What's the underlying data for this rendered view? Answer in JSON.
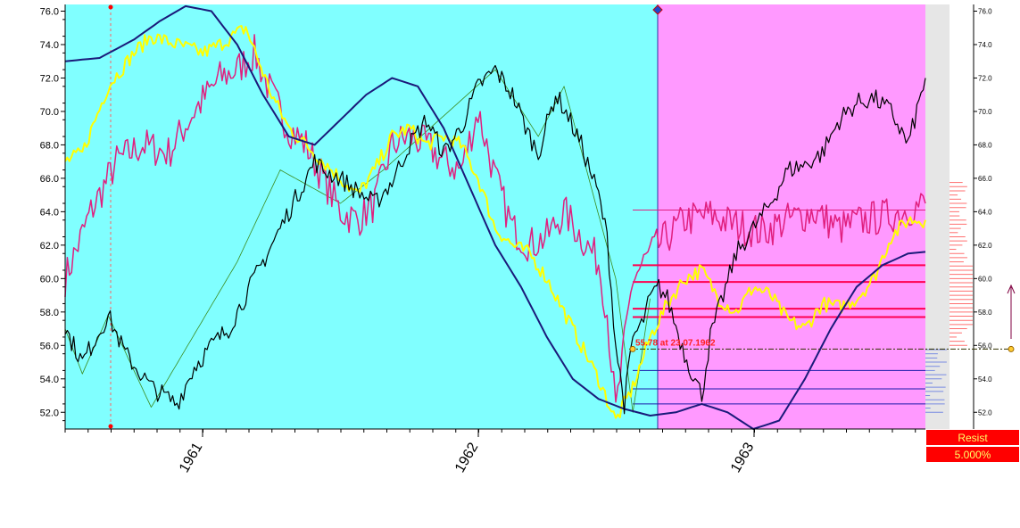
{
  "chart_data": {
    "type": "line",
    "title": "",
    "xlabel": "",
    "ylabel": "",
    "x_ticks": [
      "1961",
      "1962",
      "1963"
    ],
    "ylim": [
      51.0,
      76.4
    ],
    "y_ticks": [
      "52.0",
      "54.0",
      "56.0",
      "58.0",
      "60.0",
      "62.0",
      "64.0",
      "66.0",
      "68.0",
      "70.0",
      "72.0",
      "74.0",
      "76.0"
    ],
    "colors": {
      "history_bg": "#80ffff",
      "forecast_bg": "#ff99ff",
      "price": "#000000",
      "magenta": "#e0207f",
      "yellow": "#ffff00",
      "navy": "#1a1a7a",
      "zigzag": "#3c8c1e",
      "resist": "#ff0000"
    },
    "series": [
      {
        "key": "price",
        "x": [
          0.0,
          0.02,
          0.05,
          0.07,
          0.1,
          0.13,
          0.15,
          0.17,
          0.19,
          0.21,
          0.23,
          0.25,
          0.27,
          0.29,
          0.3,
          0.32,
          0.34,
          0.36,
          0.38,
          0.4,
          0.42,
          0.44,
          0.46,
          0.48,
          0.5,
          0.52,
          0.54,
          0.55,
          0.57,
          0.58,
          0.6,
          0.62,
          0.63,
          0.64,
          0.65,
          0.66,
          0.67,
          0.68,
          0.69,
          0.7,
          0.72,
          0.74,
          0.75,
          0.77,
          0.78,
          0.8,
          0.82,
          0.84,
          0.86,
          0.88,
          0.9,
          0.92,
          0.94,
          0.96,
          0.98,
          1.0
        ],
        "y": [
          57.0,
          55.0,
          57.8,
          55.5,
          53.5,
          52.5,
          54.7,
          56.0,
          57.0,
          59.0,
          61.0,
          63.0,
          65.0,
          67.0,
          66.5,
          66.0,
          65.2,
          64.5,
          65.8,
          68.0,
          69.5,
          67.5,
          69.0,
          71.5,
          72.5,
          71.0,
          68.5,
          67.5,
          71.0,
          70.2,
          68.0,
          65.0,
          62.5,
          56.0,
          52.5,
          56.5,
          57.2,
          58.8,
          59.5,
          58.8,
          55.5,
          53.0,
          56.5,
          59.8,
          61.5,
          63.0,
          64.5,
          66.5,
          66.8,
          67.5,
          69.5,
          70.5,
          70.8,
          70.0,
          68.0,
          72.0
        ]
      },
      {
        "key": "magenta",
        "x": [
          0.0,
          0.03,
          0.06,
          0.09,
          0.12,
          0.15,
          0.18,
          0.2,
          0.22,
          0.24,
          0.26,
          0.28,
          0.3,
          0.32,
          0.34,
          0.36,
          0.38,
          0.4,
          0.42,
          0.44,
          0.46,
          0.48,
          0.5,
          0.52,
          0.54,
          0.56,
          0.58,
          0.6,
          0.62,
          0.63,
          0.64,
          0.65,
          0.66,
          0.68,
          0.7,
          0.72,
          0.75,
          0.78,
          0.81,
          0.84,
          0.87,
          0.9,
          0.93,
          0.96,
          1.0
        ],
        "y": [
          60.0,
          64.0,
          67.0,
          68.0,
          67.5,
          70.0,
          72.0,
          72.5,
          73.5,
          71.0,
          69.0,
          68.0,
          66.0,
          64.0,
          63.5,
          64.5,
          68.0,
          68.5,
          68.0,
          67.0,
          66.5,
          70.0,
          66.0,
          63.0,
          62.0,
          62.5,
          64.0,
          62.5,
          61.0,
          58.0,
          52.0,
          56.0,
          60.0,
          61.5,
          62.5,
          63.5,
          63.8,
          63.2,
          62.8,
          63.5,
          64.0,
          63.0,
          63.5,
          63.8,
          64.5
        ]
      },
      {
        "key": "yellow",
        "x": [
          0.0,
          0.02,
          0.05,
          0.08,
          0.1,
          0.13,
          0.16,
          0.18,
          0.21,
          0.24,
          0.26,
          0.28,
          0.3,
          0.32,
          0.34,
          0.36,
          0.38,
          0.4,
          0.42,
          0.44,
          0.46,
          0.48,
          0.5,
          0.52,
          0.54,
          0.56,
          0.58,
          0.6,
          0.62,
          0.64,
          0.66,
          0.68,
          0.7,
          0.72,
          0.74,
          0.76,
          0.78,
          0.8,
          0.82,
          0.84,
          0.86,
          0.88,
          0.9,
          0.92,
          0.94,
          0.96,
          0.98,
          1.0
        ],
        "y": [
          67.0,
          67.5,
          71.5,
          73.5,
          74.5,
          74.0,
          73.5,
          74.0,
          75.0,
          71.0,
          69.0,
          68.0,
          67.0,
          66.0,
          65.0,
          66.5,
          68.5,
          69.0,
          68.0,
          68.5,
          68.0,
          66.0,
          63.0,
          62.0,
          61.5,
          60.0,
          58.0,
          56.0,
          54.0,
          51.5,
          53.5,
          56.5,
          58.5,
          60.0,
          60.5,
          58.8,
          58.0,
          59.5,
          59.0,
          57.5,
          57.0,
          58.5,
          58.3,
          58.8,
          60.0,
          62.5,
          63.5,
          63.5
        ]
      },
      {
        "key": "navy",
        "x": [
          0.0,
          0.04,
          0.08,
          0.11,
          0.14,
          0.17,
          0.2,
          0.23,
          0.26,
          0.29,
          0.32,
          0.35,
          0.38,
          0.41,
          0.44,
          0.47,
          0.5,
          0.53,
          0.56,
          0.59,
          0.62,
          0.65,
          0.68,
          0.71,
          0.74,
          0.77,
          0.8,
          0.83,
          0.86,
          0.89,
          0.92,
          0.95,
          0.98,
          1.0
        ],
        "y": [
          73.0,
          73.2,
          74.3,
          75.4,
          76.3,
          76.0,
          74.0,
          71.0,
          68.5,
          68.0,
          69.5,
          71.0,
          72.0,
          71.5,
          69.0,
          65.5,
          62.0,
          59.5,
          56.5,
          54.0,
          52.8,
          52.2,
          51.8,
          52.0,
          52.5,
          52.0,
          51.0,
          51.5,
          54.0,
          57.0,
          59.5,
          60.8,
          61.5,
          61.6
        ]
      },
      {
        "key": "zigzag",
        "x": [
          0.0,
          0.02,
          0.05,
          0.1,
          0.2,
          0.25,
          0.32,
          0.37,
          0.5,
          0.55,
          0.58,
          0.64,
          0.66,
          0.68
        ],
        "y": [
          57.0,
          54.3,
          57.8,
          52.3,
          61.0,
          66.5,
          64.5,
          66.5,
          72.5,
          68.5,
          71.5,
          60.0,
          52.0,
          58.8
        ]
      }
    ],
    "annotations": {
      "value_label": "55.78 at 23.07.1962",
      "resist_label": "Resist",
      "resist_pct": "5.000%",
      "level_value": 55.78
    },
    "levels": [
      {
        "y": 64.1,
        "color": "#e0207f"
      },
      {
        "y": 60.8,
        "color": "#ff0050"
      },
      {
        "y": 59.8,
        "color": "#ff0050"
      },
      {
        "y": 58.2,
        "color": "#ff0050"
      },
      {
        "y": 57.7,
        "color": "#ff0050"
      },
      {
        "y": 54.5,
        "color": "#1a1aaa"
      },
      {
        "y": 53.4,
        "color": "#1a1aaa"
      },
      {
        "y": 52.5,
        "color": "#1a1aaa"
      }
    ],
    "legend": "none",
    "grid": false
  }
}
